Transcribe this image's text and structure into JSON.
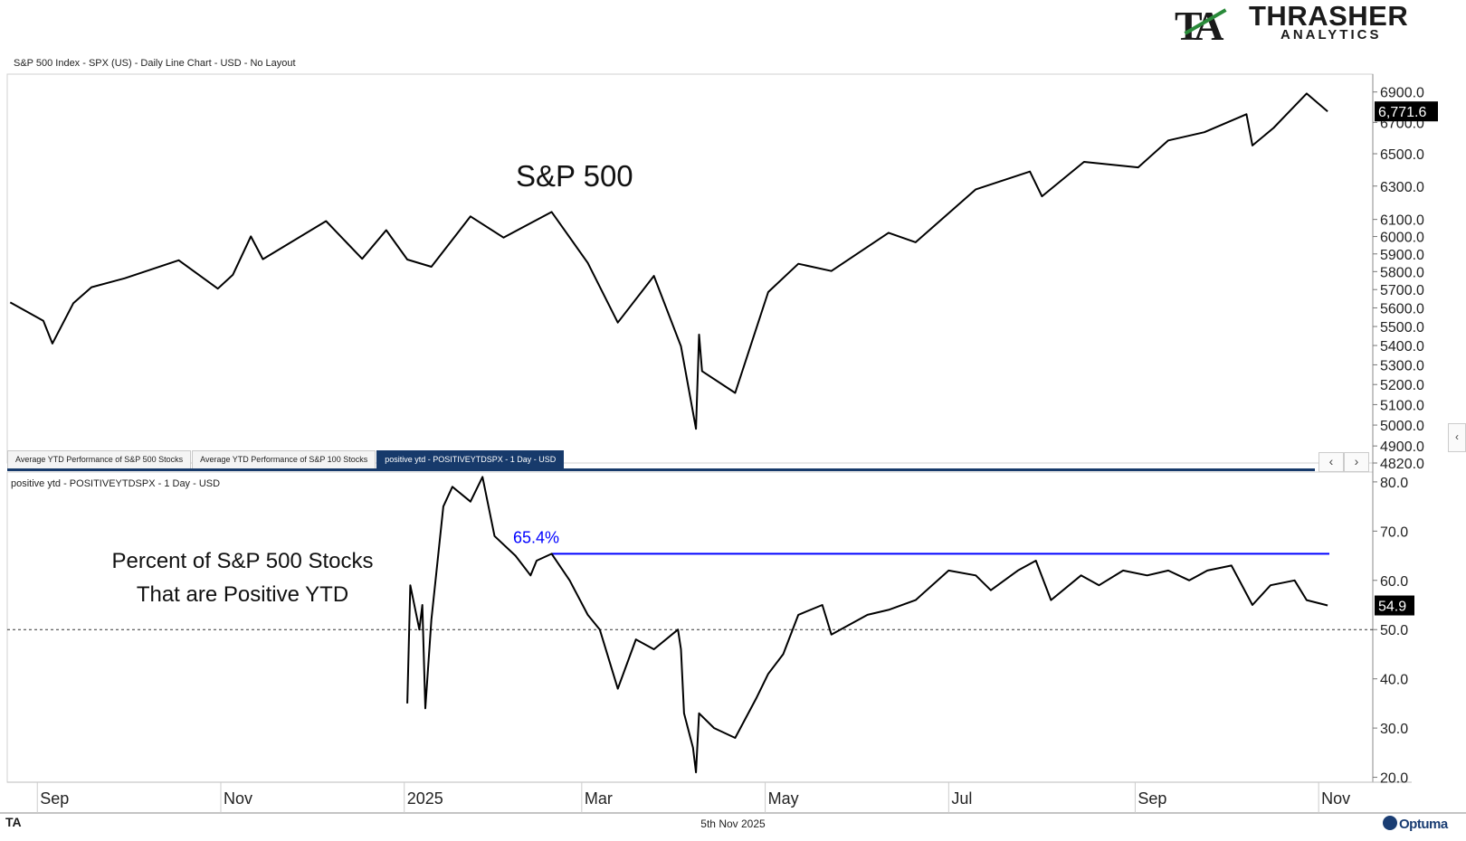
{
  "header": {
    "title": "S&P 500 Index - SPX (US) - Daily Line Chart - USD - No Layout"
  },
  "brand": {
    "mark": "TA",
    "name": "THRASHER",
    "sub": "ANALYTICS"
  },
  "tabs": [
    {
      "label": "Average YTD Performance of S&P 500 Stocks",
      "active": false
    },
    {
      "label": "Average YTD Performance of S&P 100 Stocks",
      "active": false
    },
    {
      "label": "positive ytd - POSITIVEYTDSPX - 1 Day - USD",
      "active": true
    }
  ],
  "nav": {
    "prev": "‹",
    "next": "›",
    "side": "‹"
  },
  "footer": {
    "date": "5th Nov 2025",
    "logo": "TA",
    "vendor": "Optuma"
  },
  "colors": {
    "line": "#000000",
    "reference": "#0000ff",
    "badge_bg": "#000000",
    "tab_active": "#173a6b"
  },
  "chart_data": [
    {
      "type": "line",
      "header": "S&P 500 Index - SPX (US) - Daily Line Chart - USD - No Layout",
      "annotation": "S&P 500",
      "yscale": "log",
      "ylim": [
        4820,
        7020
      ],
      "yticks": [
        "6900.0",
        "6700.0",
        "6500.0",
        "6300.0",
        "6100.0",
        "6000.0",
        "5900.0",
        "5800.0",
        "5700.0",
        "5600.0",
        "5500.0",
        "5400.0",
        "5300.0",
        "5200.0",
        "5100.0",
        "5000.0",
        "4900.0",
        "4820.0"
      ],
      "last_value_label": "6,771.6",
      "series": [
        {
          "x": [
            "2024-08-23",
            "2024-09-03",
            "2024-09-06",
            "2024-09-13",
            "2024-09-19",
            "2024-09-30",
            "2024-10-18",
            "2024-10-31",
            "2024-11-05",
            "2024-11-11",
            "2024-11-15",
            "2024-12-06",
            "2024-12-18",
            "2024-12-26",
            "2025-01-02",
            "2025-01-10",
            "2025-01-23",
            "2025-02-03",
            "2025-02-19",
            "2025-03-03",
            "2025-03-13",
            "2025-03-25",
            "2025-04-03",
            "2025-04-08",
            "2025-04-09",
            "2025-04-10",
            "2025-04-21",
            "2025-05-02",
            "2025-05-12",
            "2025-05-23",
            "2025-06-11",
            "2025-06-20",
            "2025-07-10",
            "2025-07-28",
            "2025-08-01",
            "2025-08-15",
            "2025-09-02",
            "2025-09-12",
            "2025-09-24",
            "2025-10-08",
            "2025-10-10",
            "2025-10-17",
            "2025-10-28",
            "2025-11-04"
          ],
          "y": [
            5630,
            5530,
            5410,
            5626,
            5713,
            5762,
            5864,
            5705,
            5782,
            6001,
            5870,
            6090,
            5872,
            6037,
            5868,
            5827,
            6118,
            5994,
            6144,
            5849,
            5521,
            5776,
            5396,
            4982,
            5457,
            5268,
            5158,
            5686,
            5844,
            5803,
            6022,
            5967,
            6280,
            6389,
            6238,
            6449,
            6415,
            6584,
            6637,
            6753,
            6552,
            6664,
            6890,
            6771.6
          ]
        }
      ]
    },
    {
      "type": "line",
      "header": "positive ytd - POSITIVEYTDSPX - 1 Day - USD",
      "annotation": [
        "Percent of S&P 500 Stocks",
        "That are Positive YTD"
      ],
      "ylim": [
        19,
        82
      ],
      "yticks": [
        "80.0",
        "70.0",
        "60.0",
        "50.0",
        "40.0",
        "30.0",
        "20.0"
      ],
      "reference_line": {
        "y": 65.4,
        "label": "65.4%",
        "from": "2025-02-19",
        "color": "#0000ff"
      },
      "dotted_line": 50,
      "last_value_label": "54.9",
      "series": [
        {
          "x": [
            "2025-01-02",
            "2025-01-03",
            "2025-01-06",
            "2025-01-07",
            "2025-01-08",
            "2025-01-10",
            "2025-01-14",
            "2025-01-17",
            "2025-01-23",
            "2025-01-27",
            "2025-01-31",
            "2025-02-07",
            "2025-02-12",
            "2025-02-14",
            "2025-02-19",
            "2025-02-25",
            "2025-03-03",
            "2025-03-07",
            "2025-03-13",
            "2025-03-19",
            "2025-03-25",
            "2025-04-02",
            "2025-04-03",
            "2025-04-04",
            "2025-04-07",
            "2025-04-08",
            "2025-04-09",
            "2025-04-14",
            "2025-04-21",
            "2025-04-28",
            "2025-05-02",
            "2025-05-07",
            "2025-05-12",
            "2025-05-20",
            "2025-05-23",
            "2025-06-04",
            "2025-06-11",
            "2025-06-20",
            "2025-07-01",
            "2025-07-10",
            "2025-07-15",
            "2025-07-24",
            "2025-07-30",
            "2025-08-04",
            "2025-08-14",
            "2025-08-20",
            "2025-08-28",
            "2025-09-05",
            "2025-09-12",
            "2025-09-19",
            "2025-09-25",
            "2025-10-03",
            "2025-10-10",
            "2025-10-16",
            "2025-10-24",
            "2025-10-28",
            "2025-11-04"
          ],
          "y": [
            35,
            59,
            50,
            55,
            34,
            52,
            75,
            79,
            76,
            81,
            69,
            65,
            61,
            64,
            65.4,
            60,
            53,
            50,
            38,
            48,
            46,
            50,
            46,
            33,
            26,
            21,
            33,
            30,
            28,
            36,
            41,
            45,
            53,
            55,
            49,
            53,
            54,
            56,
            62,
            61,
            58,
            62,
            64,
            56,
            61,
            59,
            62,
            61,
            62,
            60,
            62,
            63,
            55,
            59,
            60,
            56,
            54.9
          ]
        }
      ]
    }
  ],
  "x_axis": {
    "ticks": [
      "Sep",
      "Nov",
      "2025",
      "Mar",
      "May",
      "Jul",
      "Sep",
      "Nov"
    ]
  }
}
